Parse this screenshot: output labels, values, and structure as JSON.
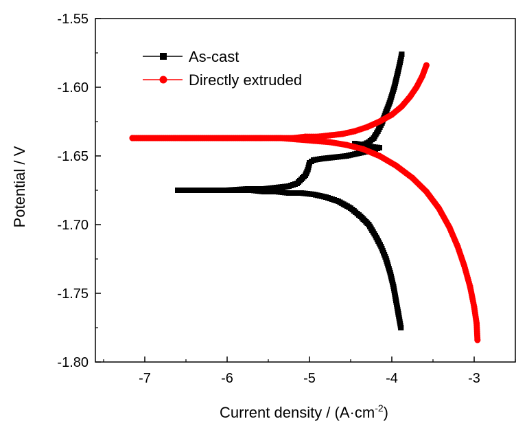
{
  "chart_data": {
    "type": "line",
    "xlabel": "Current density / (A·cm",
    "xlabel_sup": "-2",
    "xlabel_close": ")",
    "ylabel": "Potential / V",
    "xlim": [
      -7.6,
      -2.5
    ],
    "ylim": [
      -1.8,
      -1.55
    ],
    "x_ticks": [
      -7,
      -6,
      -5,
      -4,
      -3
    ],
    "x_tick_labels": [
      "-7",
      "-6",
      "-5",
      "-4",
      "-3"
    ],
    "y_ticks": [
      -1.8,
      -1.75,
      -1.7,
      -1.65,
      -1.6,
      -1.55
    ],
    "y_tick_labels": [
      "-1.80",
      "-1.75",
      "-1.70",
      "-1.65",
      "-1.60",
      "-1.55"
    ],
    "grid": false,
    "legend": "top-left",
    "series": [
      {
        "name": "As-cast",
        "color": "#000000",
        "marker": "square",
        "points": [
          [
            -3.88,
            -1.576
          ],
          [
            -3.9,
            -1.582
          ],
          [
            -3.93,
            -1.59
          ],
          [
            -3.97,
            -1.6
          ],
          [
            -4.02,
            -1.61
          ],
          [
            -4.07,
            -1.618
          ],
          [
            -4.12,
            -1.626
          ],
          [
            -4.17,
            -1.632
          ],
          [
            -4.22,
            -1.637
          ],
          [
            -4.28,
            -1.64
          ],
          [
            -4.35,
            -1.642
          ],
          [
            -4.45,
            -1.641
          ],
          [
            -4.3,
            -1.643
          ],
          [
            -4.15,
            -1.644
          ],
          [
            -4.25,
            -1.646
          ],
          [
            -4.4,
            -1.648
          ],
          [
            -4.55,
            -1.65
          ],
          [
            -4.7,
            -1.651
          ],
          [
            -4.85,
            -1.652
          ],
          [
            -4.95,
            -1.653
          ],
          [
            -5.0,
            -1.655
          ],
          [
            -5.02,
            -1.66
          ],
          [
            -5.05,
            -1.664
          ],
          [
            -5.1,
            -1.667
          ],
          [
            -5.15,
            -1.67
          ],
          [
            -5.25,
            -1.672
          ],
          [
            -5.4,
            -1.673
          ],
          [
            -5.55,
            -1.674
          ],
          [
            -5.75,
            -1.674
          ],
          [
            -6.0,
            -1.675
          ],
          [
            -6.3,
            -1.675
          ],
          [
            -6.6,
            -1.675
          ],
          [
            -6.6,
            -1.675
          ],
          [
            -6.3,
            -1.675
          ],
          [
            -6.05,
            -1.675
          ],
          [
            -5.85,
            -1.675
          ],
          [
            -5.7,
            -1.675
          ],
          [
            -5.55,
            -1.676
          ],
          [
            -5.4,
            -1.676
          ],
          [
            -5.25,
            -1.677
          ],
          [
            -5.1,
            -1.677
          ],
          [
            -4.95,
            -1.678
          ],
          [
            -4.8,
            -1.68
          ],
          [
            -4.65,
            -1.683
          ],
          [
            -4.5,
            -1.688
          ],
          [
            -4.38,
            -1.694
          ],
          [
            -4.28,
            -1.7
          ],
          [
            -4.2,
            -1.708
          ],
          [
            -4.13,
            -1.716
          ],
          [
            -4.07,
            -1.725
          ],
          [
            -4.02,
            -1.735
          ],
          [
            -3.98,
            -1.745
          ],
          [
            -3.95,
            -1.755
          ],
          [
            -3.92,
            -1.765
          ],
          [
            -3.89,
            -1.775
          ]
        ]
      },
      {
        "name": "Directly extruded",
        "color": "#ff0000",
        "marker": "circle",
        "points": [
          [
            -3.58,
            -1.584
          ],
          [
            -3.63,
            -1.592
          ],
          [
            -3.7,
            -1.6
          ],
          [
            -3.78,
            -1.607
          ],
          [
            -3.88,
            -1.614
          ],
          [
            -4.0,
            -1.62
          ],
          [
            -4.15,
            -1.625
          ],
          [
            -4.3,
            -1.629
          ],
          [
            -4.45,
            -1.632
          ],
          [
            -4.6,
            -1.634
          ],
          [
            -4.75,
            -1.635
          ],
          [
            -4.9,
            -1.636
          ],
          [
            -5.05,
            -1.636
          ],
          [
            -5.2,
            -1.637
          ],
          [
            -5.4,
            -1.637
          ],
          [
            -5.6,
            -1.637
          ],
          [
            -5.8,
            -1.637
          ],
          [
            -6.05,
            -1.637
          ],
          [
            -6.5,
            -1.637
          ],
          [
            -7.15,
            -1.637
          ],
          [
            -7.15,
            -1.637
          ],
          [
            -6.0,
            -1.637
          ],
          [
            -5.65,
            -1.637
          ],
          [
            -5.35,
            -1.637
          ],
          [
            -5.15,
            -1.638
          ],
          [
            -4.95,
            -1.639
          ],
          [
            -4.75,
            -1.64
          ],
          [
            -4.55,
            -1.642
          ],
          [
            -4.35,
            -1.645
          ],
          [
            -4.15,
            -1.65
          ],
          [
            -3.95,
            -1.657
          ],
          [
            -3.75,
            -1.666
          ],
          [
            -3.58,
            -1.676
          ],
          [
            -3.43,
            -1.688
          ],
          [
            -3.3,
            -1.702
          ],
          [
            -3.2,
            -1.716
          ],
          [
            -3.12,
            -1.73
          ],
          [
            -3.05,
            -1.745
          ],
          [
            -3.0,
            -1.76
          ],
          [
            -2.97,
            -1.772
          ],
          [
            -2.96,
            -1.784
          ]
        ]
      }
    ]
  }
}
